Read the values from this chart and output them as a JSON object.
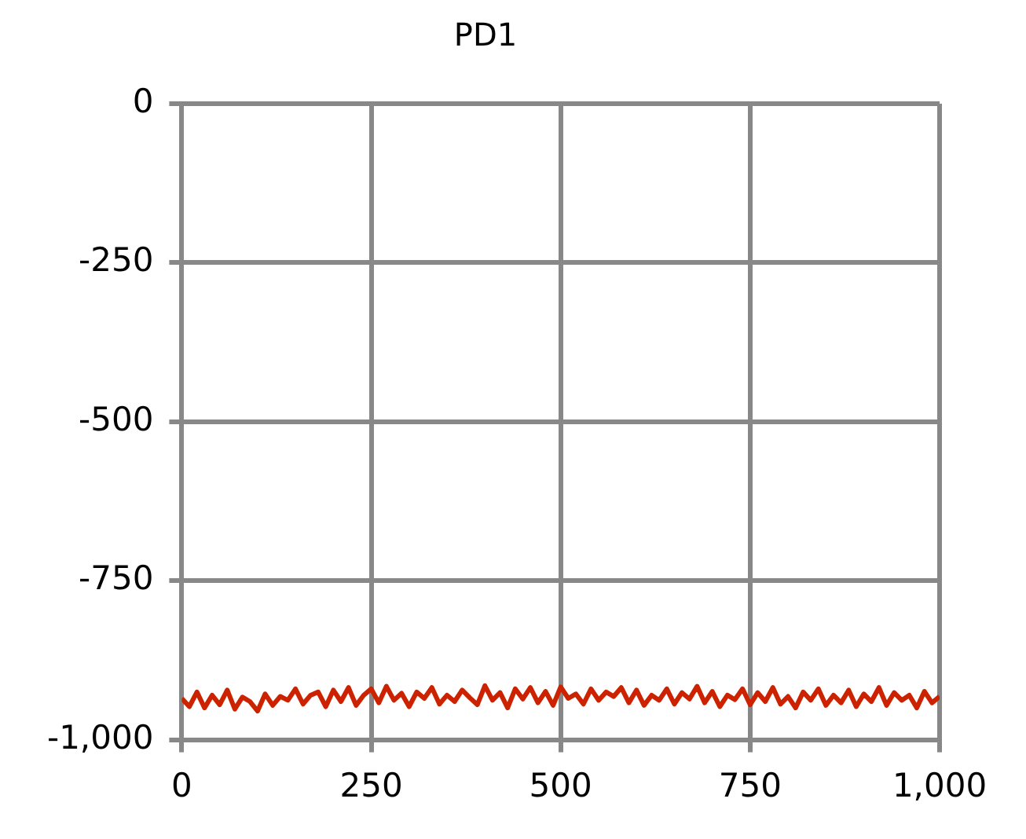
{
  "chart_data": {
    "type": "line",
    "title": "PD1",
    "x": [
      0,
      10,
      20,
      30,
      40,
      50,
      60,
      70,
      80,
      90,
      100,
      110,
      120,
      130,
      140,
      150,
      160,
      170,
      180,
      190,
      200,
      210,
      220,
      230,
      240,
      250,
      260,
      270,
      280,
      290,
      300,
      310,
      320,
      330,
      340,
      350,
      360,
      370,
      380,
      390,
      400,
      410,
      420,
      430,
      440,
      450,
      460,
      470,
      480,
      490,
      500,
      510,
      520,
      530,
      540,
      550,
      560,
      570,
      580,
      590,
      600,
      610,
      620,
      630,
      640,
      650,
      660,
      670,
      680,
      690,
      700,
      710,
      720,
      730,
      740,
      750,
      760,
      770,
      780,
      790,
      800,
      810,
      820,
      830,
      840,
      850,
      860,
      870,
      880,
      890,
      900,
      910,
      920,
      930,
      940,
      950,
      960,
      970,
      980,
      990,
      1000
    ],
    "series": [
      {
        "color": "#cc2200",
        "values": [
          -935,
          -948,
          -925,
          -950,
          -930,
          -945,
          -922,
          -952,
          -933,
          -940,
          -955,
          -928,
          -946,
          -932,
          -938,
          -920,
          -944,
          -930,
          -925,
          -948,
          -922,
          -940,
          -918,
          -946,
          -930,
          -920,
          -942,
          -916,
          -938,
          -927,
          -948,
          -925,
          -935,
          -918,
          -944,
          -930,
          -940,
          -922,
          -934,
          -945,
          -915,
          -938,
          -926,
          -950,
          -920,
          -936,
          -918,
          -942,
          -924,
          -946,
          -917,
          -935,
          -928,
          -944,
          -920,
          -938,
          -925,
          -932,
          -918,
          -942,
          -922,
          -946,
          -930,
          -938,
          -920,
          -944,
          -926,
          -936,
          -916,
          -942,
          -924,
          -948,
          -930,
          -937,
          -920,
          -945,
          -926,
          -940,
          -918,
          -944,
          -932,
          -950,
          -925,
          -938,
          -920,
          -946,
          -930,
          -942,
          -922,
          -948,
          -928,
          -940,
          -918,
          -946,
          -926,
          -938,
          -930,
          -950,
          -924,
          -942,
          -932
        ]
      }
    ],
    "xlim": [
      0,
      1000
    ],
    "xticks": [
      0,
      250,
      500,
      750,
      {
        "value": 1000,
        "label": "1,000"
      }
    ],
    "ylim": [
      -1000,
      0
    ],
    "yticks": [
      {
        "value": -1000,
        "label": "-1,000"
      },
      -750,
      -500,
      -250,
      0
    ],
    "grid": true,
    "marker": "none",
    "line_style": "solid"
  }
}
